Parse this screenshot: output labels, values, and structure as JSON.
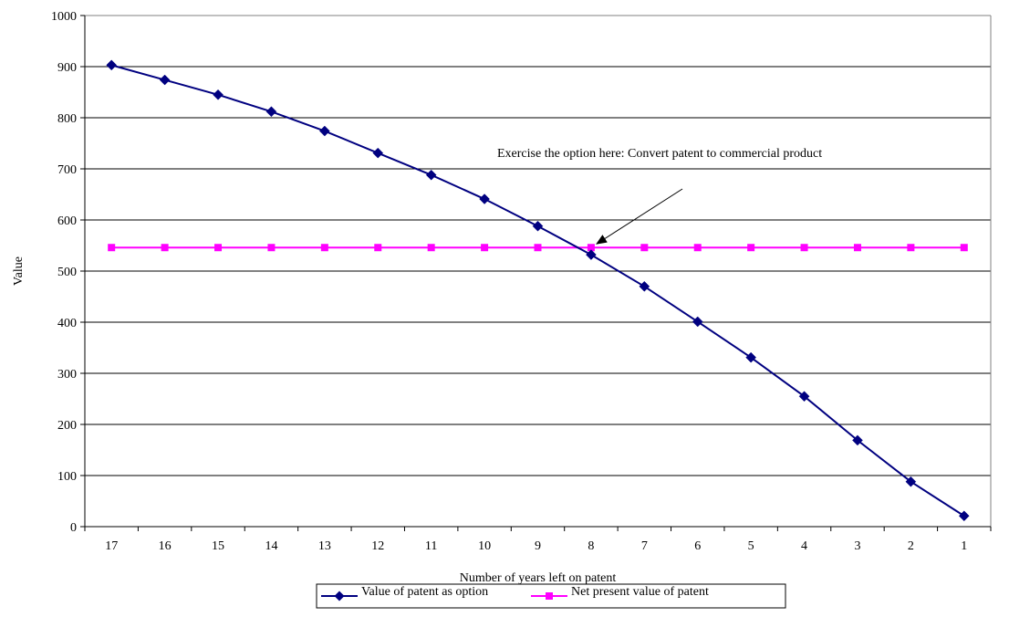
{
  "chart_data": {
    "type": "line",
    "xlabel": "Number of years left on patent",
    "ylabel": "Value",
    "categories": [
      "17",
      "16",
      "15",
      "14",
      "13",
      "12",
      "11",
      "10",
      "9",
      "8",
      "7",
      "6",
      "5",
      "4",
      "3",
      "2",
      "1"
    ],
    "ylim": [
      0,
      1000
    ],
    "yticks": [
      0,
      100,
      200,
      300,
      400,
      500,
      600,
      700,
      800,
      900,
      1000
    ],
    "grid": true,
    "legend_position": "bottom",
    "series": [
      {
        "name": "Value of patent as option",
        "color": "#000080",
        "marker": "diamond",
        "values": [
          903,
          874,
          845,
          812,
          774,
          731,
          688,
          641,
          588,
          532,
          470,
          401,
          331,
          255,
          169,
          88,
          21
        ]
      },
      {
        "name": "Net present value of patent",
        "color": "#ff00ff",
        "marker": "square",
        "values": [
          546,
          546,
          546,
          546,
          546,
          546,
          546,
          546,
          546,
          546,
          546,
          546,
          546,
          546,
          546,
          546,
          546
        ]
      }
    ],
    "annotations": [
      {
        "text": "Exercise the option here: Convert patent to commercial product",
        "points_to": {
          "x": "8",
          "y": 546
        }
      }
    ]
  }
}
